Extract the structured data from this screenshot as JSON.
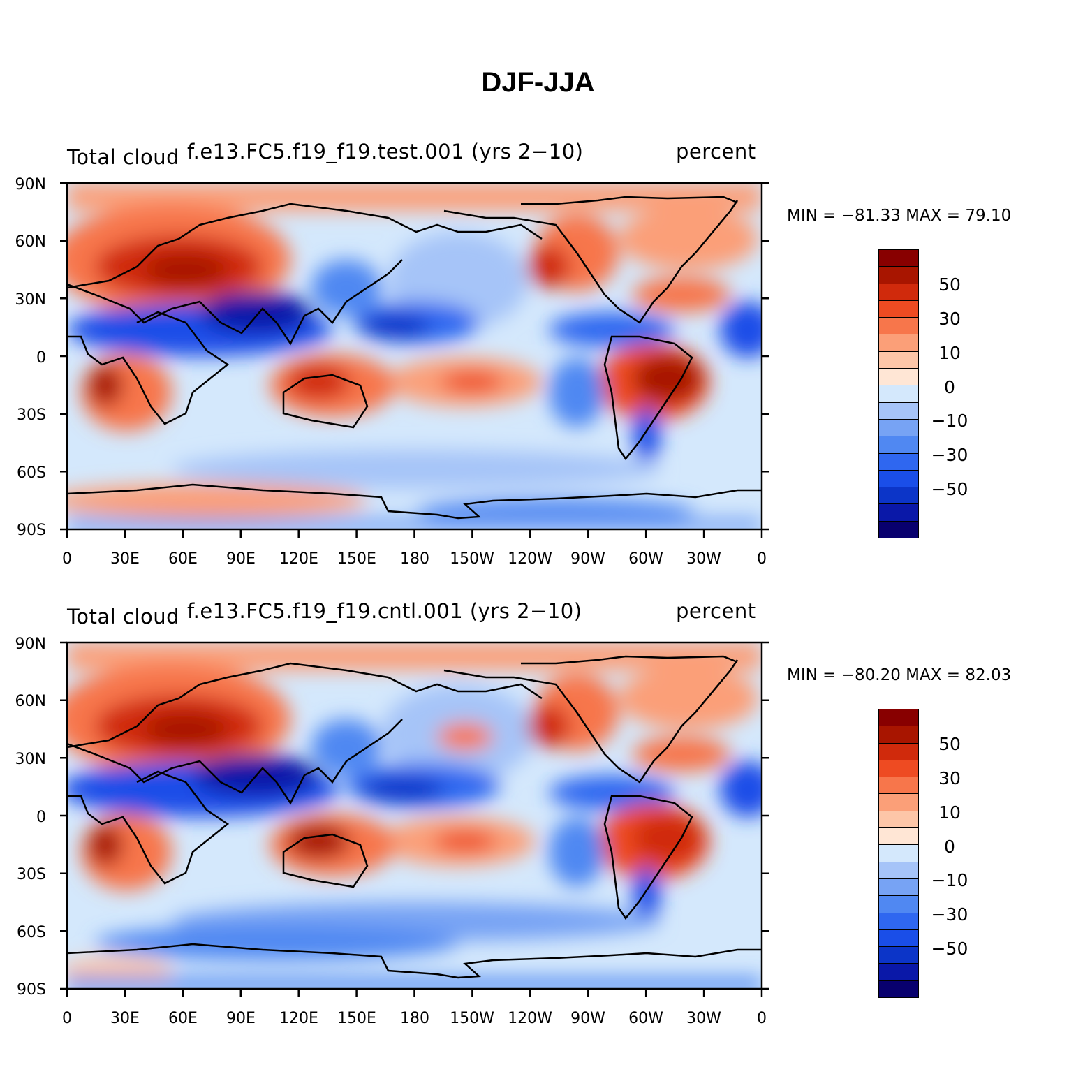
{
  "title": "DJF-JJA",
  "colors": [
    "#08006e",
    "#0a18a8",
    "#0c35c8",
    "#1a4ee8",
    "#2f67f0",
    "#5088f2",
    "#77a3f4",
    "#a6c4f8",
    "#d4e8fc",
    "#ffe6d5",
    "#fdc6a8",
    "#fb9f78",
    "#f7764b",
    "#ee4b22",
    "#d02a0c",
    "#a81500",
    "#880000"
  ],
  "colorbar": {
    "labels": [
      "50",
      "30",
      "10",
      "0",
      "−10",
      "−30",
      "−50"
    ]
  },
  "x_ticks": [
    "0",
    "30E",
    "60E",
    "90E",
    "120E",
    "150E",
    "180",
    "150W",
    "120W",
    "90W",
    "60W",
    "30W",
    "0"
  ],
  "y_ticks": [
    "90N",
    "60N",
    "30N",
    "0",
    "30S",
    "60S",
    "90S"
  ],
  "panels": [
    {
      "left_label": "Total cloud",
      "center_label": "f.e13.FC5.f19_f19.test.001 (yrs 2−10)",
      "right_label": "percent",
      "minmax": "MIN = −81.33 MAX =   79.10"
    },
    {
      "left_label": "Total cloud",
      "center_label": "f.e13.FC5.f19_f19.cntl.001 (yrs 2−10)",
      "right_label": "percent",
      "minmax": "MIN = −80.20 MAX =   82.03"
    }
  ],
  "chart_data": [
    {
      "type": "heatmap",
      "title": "f.e13.FC5.f19_f19.test.001 (yrs 2−10)",
      "variable": "Total cloud",
      "units": "percent",
      "min": -81.33,
      "max": 79.1,
      "levels": [
        -70,
        -60,
        -50,
        -40,
        -30,
        -20,
        -10,
        -5,
        0,
        5,
        10,
        20,
        30,
        40,
        50,
        60,
        70
      ],
      "xlim": [
        0,
        360
      ],
      "ylim": [
        -90,
        90
      ]
    },
    {
      "type": "heatmap",
      "title": "f.e13.FC5.f19_f19.cntl.001 (yrs 2−10)",
      "variable": "Total cloud",
      "units": "percent",
      "min": -80.2,
      "max": 82.03,
      "levels": [
        -70,
        -60,
        -50,
        -40,
        -30,
        -20,
        -10,
        -5,
        0,
        5,
        10,
        20,
        30,
        40,
        50,
        60,
        70
      ],
      "xlim": [
        0,
        360
      ],
      "ylim": [
        -90,
        90
      ]
    }
  ]
}
